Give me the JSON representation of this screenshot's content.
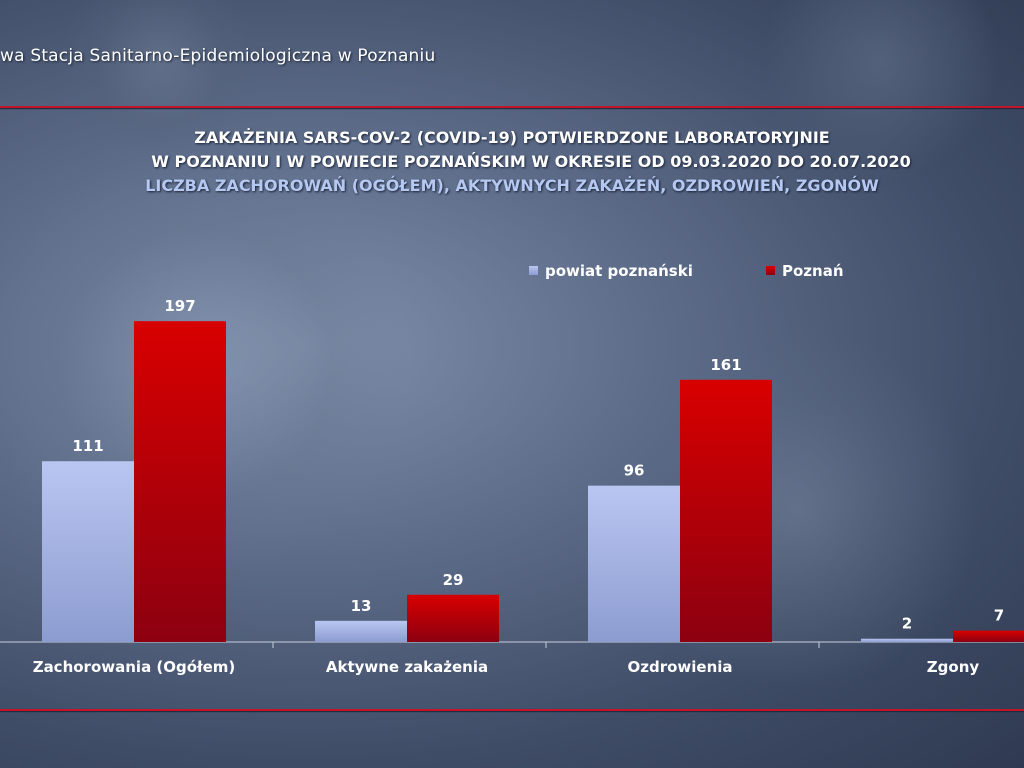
{
  "header": {
    "institution": "wa Stacja Sanitarno-Epidemiologiczna w Poznaniu"
  },
  "chart_data": {
    "type": "bar",
    "title": "ZAKAŻENIA SARS-COV-2 (COVID-19) POTWIERDZONE LABORATORYJNIE",
    "title_line2": "W POZNANIU I W POWIECIE POZNAŃSKIM W OKRESIE OD 09.03.2020 DO 20.07.2020",
    "subtitle": "LICZBA ZACHOROWAŃ (OGÓŁEM), AKTYWNYCH ZAKAŻEŃ, OZDROWIEŃ, ZGONÓW",
    "categories": [
      "Zachorowania (Ogółem)",
      "Aktywne zakażenia",
      "Ozdrowienia",
      "Zgony"
    ],
    "series": [
      {
        "name": "powiat poznański",
        "values": [
          111,
          13,
          96,
          2
        ],
        "color": "#a9b8e8"
      },
      {
        "name": "Poznań",
        "values": [
          197,
          29,
          161,
          7
        ],
        "color": "#cc0000"
      }
    ],
    "xlabel": "",
    "ylabel": "",
    "ylim": [
      0,
      210
    ],
    "legend_position": "top-right",
    "grid": false
  }
}
